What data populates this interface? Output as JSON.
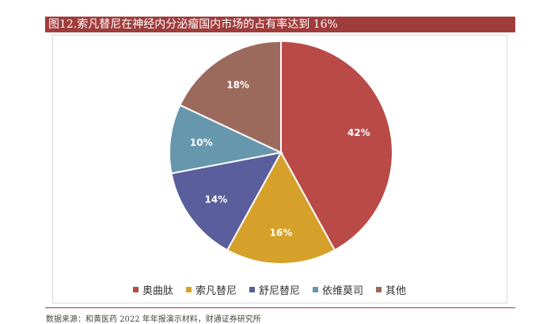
{
  "title": "图12.索凡替尼在神经内分泌瘤国内市场的占有率达到 16%",
  "source": "数据来源：和黄医药 2022 年年报演示材料，财通证券研究所",
  "chart_data": {
    "type": "pie",
    "legend_position": "bottom",
    "slices": [
      {
        "label": "奥曲肽",
        "value": 42,
        "value_label": "42%",
        "color": "#b94a48"
      },
      {
        "label": "索凡替尼",
        "value": 16,
        "value_label": "16%",
        "color": "#d6a12a"
      },
      {
        "label": "舒尼替尼",
        "value": 14,
        "value_label": "14%",
        "color": "#5a5e9c"
      },
      {
        "label": "依维莫司",
        "value": 10,
        "value_label": "10%",
        "color": "#6797ad"
      },
      {
        "label": "其他",
        "value": 18,
        "value_label": "18%",
        "color": "#9c6a5c"
      }
    ]
  }
}
